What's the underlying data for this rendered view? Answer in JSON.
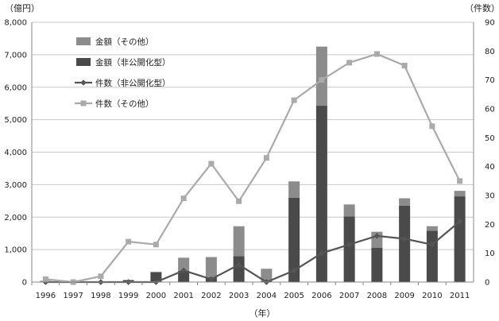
{
  "chart_data": {
    "type": "bar",
    "title": "",
    "xlabel": "（年）",
    "ylabel_left": "（億円）",
    "ylabel_right": "（件数）",
    "categories": [
      "1996",
      "1997",
      "1998",
      "1999",
      "2000",
      "2001",
      "2002",
      "2003",
      "2004",
      "2005",
      "2006",
      "2007",
      "2008",
      "2009",
      "2010",
      "2011"
    ],
    "ylim_left": [
      0,
      8000
    ],
    "yticks_left": [
      "0",
      "1,000",
      "2,000",
      "3,000",
      "4,000",
      "5,000",
      "6,000",
      "7,000",
      "8,000"
    ],
    "ylim_right": [
      0,
      90
    ],
    "yticks_right": [
      "0",
      "10",
      "20",
      "30",
      "40",
      "50",
      "60",
      "70",
      "80",
      "90"
    ],
    "stacked_bars": [
      {
        "name": "金額（非公開化型）",
        "color": "#4a4a4a",
        "axis": "left",
        "values": [
          10,
          0,
          10,
          50,
          300,
          350,
          150,
          800,
          30,
          2600,
          5430,
          2020,
          1060,
          2350,
          1580,
          2640
        ]
      },
      {
        "name": "金額（その他）",
        "color": "#8c8c8c",
        "axis": "left",
        "values": [
          30,
          0,
          10,
          20,
          20,
          400,
          620,
          920,
          380,
          500,
          1820,
          370,
          490,
          230,
          140,
          170
        ]
      }
    ],
    "lines": [
      {
        "name": "件数（非公開化型）",
        "color": "#555555",
        "marker": "diamond",
        "axis": "right",
        "values": [
          0,
          0,
          0,
          0,
          0,
          4,
          1,
          6,
          0,
          4,
          10,
          13,
          16,
          15,
          13,
          21
        ]
      },
      {
        "name": "件数（その他）",
        "color": "#aaaaaa",
        "marker": "square",
        "axis": "right",
        "values": [
          1,
          0,
          2,
          14,
          13,
          29,
          41,
          28,
          43,
          63,
          70,
          76,
          79,
          75,
          54,
          35
        ]
      }
    ],
    "legend": {
      "placement": "top-left",
      "items": [
        {
          "label": "金額（その他）",
          "kind": "bar",
          "color": "#8c8c8c"
        },
        {
          "label": "金額（非公開化型）",
          "kind": "bar",
          "color": "#4a4a4a"
        },
        {
          "label": "件数（非公開化型）",
          "kind": "line",
          "marker": "diamond",
          "color": "#555555"
        },
        {
          "label": "件数（その他）",
          "kind": "line",
          "marker": "square",
          "color": "#aaaaaa"
        }
      ]
    },
    "grid": true
  }
}
